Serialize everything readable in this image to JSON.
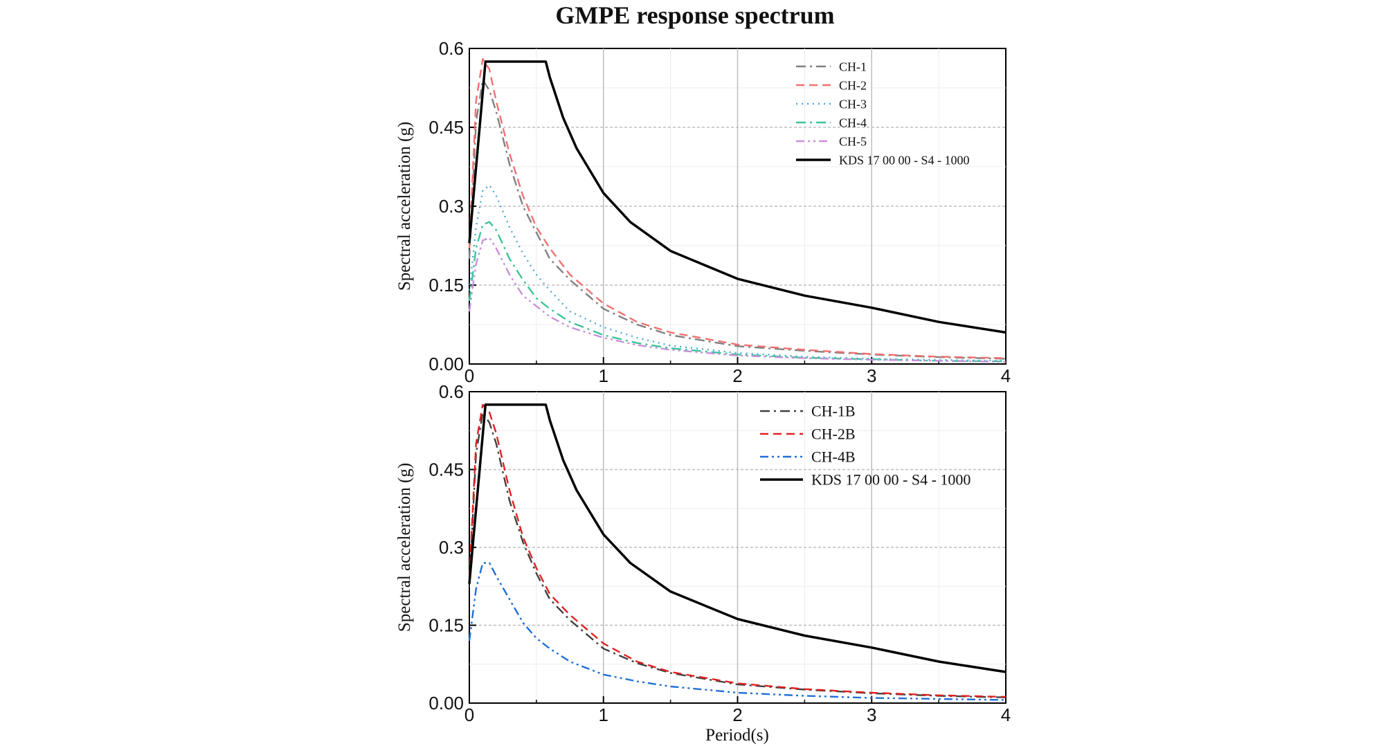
{
  "title": "GMPE response spectrum",
  "colors": {
    "ch1": "#808080",
    "ch2": "#f07070",
    "ch3": "#4aa8d8",
    "ch4": "#3cc39a",
    "ch5": "#c890dc",
    "ch1b": "#404040",
    "ch2b": "#e02020",
    "ch4b": "#1f6fd6",
    "kds": "#000000"
  },
  "chart_data": [
    {
      "type": "line",
      "xlabel": "",
      "ylabel": "Spectral acceleration (g)",
      "xlim": [
        0,
        4
      ],
      "ylim": [
        0,
        0.6
      ],
      "xticks": [
        "0",
        "1",
        "2",
        "3",
        "4"
      ],
      "yticks": [
        "0.00",
        "0.15",
        "0.3",
        "0.45",
        "0.6"
      ],
      "grid": true,
      "legend_position": "top-right",
      "series": [
        {
          "name": "CH-1",
          "color": "#808080",
          "dash": "dashdot",
          "x": [
            0,
            0.05,
            0.1,
            0.15,
            0.2,
            0.3,
            0.4,
            0.5,
            0.6,
            0.75,
            1.0,
            1.25,
            1.5,
            2.0,
            2.5,
            3.0,
            3.5,
            4.0
          ],
          "y": [
            0.2,
            0.46,
            0.54,
            0.52,
            0.48,
            0.38,
            0.3,
            0.25,
            0.2,
            0.16,
            0.105,
            0.075,
            0.055,
            0.034,
            0.025,
            0.018,
            0.013,
            0.01
          ]
        },
        {
          "name": "CH-2",
          "color": "#f07070",
          "dash": "dashed",
          "x": [
            0,
            0.05,
            0.1,
            0.15,
            0.2,
            0.3,
            0.4,
            0.5,
            0.6,
            0.75,
            1.0,
            1.25,
            1.5,
            2.0,
            2.5,
            3.0,
            3.5,
            4.0
          ],
          "y": [
            0.22,
            0.5,
            0.58,
            0.56,
            0.5,
            0.4,
            0.32,
            0.26,
            0.22,
            0.17,
            0.115,
            0.08,
            0.06,
            0.037,
            0.027,
            0.019,
            0.014,
            0.011
          ]
        },
        {
          "name": "CH-3",
          "color": "#4aa8d8",
          "dash": "dotted",
          "x": [
            0,
            0.05,
            0.1,
            0.15,
            0.2,
            0.3,
            0.4,
            0.5,
            0.6,
            0.75,
            1.0,
            1.25,
            1.5,
            2.0,
            2.5,
            3.0,
            3.5,
            4.0
          ],
          "y": [
            0.14,
            0.26,
            0.33,
            0.34,
            0.32,
            0.26,
            0.21,
            0.17,
            0.14,
            0.1,
            0.07,
            0.05,
            0.035,
            0.021,
            0.014,
            0.01,
            0.008,
            0.006
          ]
        },
        {
          "name": "CH-4",
          "color": "#3cc39a",
          "dash": "dashdot",
          "x": [
            0,
            0.05,
            0.1,
            0.15,
            0.2,
            0.3,
            0.4,
            0.5,
            0.6,
            0.75,
            1.0,
            1.25,
            1.5,
            2.0,
            2.5,
            3.0,
            3.5,
            4.0
          ],
          "y": [
            0.12,
            0.22,
            0.265,
            0.27,
            0.255,
            0.2,
            0.16,
            0.125,
            0.105,
            0.08,
            0.055,
            0.04,
            0.03,
            0.018,
            0.012,
            0.009,
            0.006,
            0.005
          ]
        },
        {
          "name": "CH-5",
          "color": "#c890dc",
          "dash": "dashdotdot",
          "x": [
            0,
            0.05,
            0.1,
            0.15,
            0.2,
            0.3,
            0.4,
            0.5,
            0.6,
            0.75,
            1.0,
            1.25,
            1.5,
            2.0,
            2.5,
            3.0,
            3.5,
            4.0
          ],
          "y": [
            0.1,
            0.19,
            0.235,
            0.24,
            0.22,
            0.17,
            0.13,
            0.11,
            0.09,
            0.07,
            0.05,
            0.036,
            0.027,
            0.016,
            0.011,
            0.008,
            0.006,
            0.004
          ]
        },
        {
          "name": "KDS 17 00 00 - S4 - 1000",
          "color": "#000000",
          "dash": "solid",
          "x": [
            0,
            0.12,
            0.2,
            0.3,
            0.4,
            0.5,
            0.57,
            0.6,
            0.7,
            0.8,
            1.0,
            1.2,
            1.5,
            2.0,
            2.5,
            3.0,
            3.5,
            4.0
          ],
          "y": [
            0.23,
            0.575,
            0.575,
            0.575,
            0.575,
            0.575,
            0.575,
            0.545,
            0.468,
            0.41,
            0.325,
            0.27,
            0.215,
            0.162,
            0.13,
            0.107,
            0.08,
            0.06
          ]
        }
      ]
    },
    {
      "type": "line",
      "xlabel": "Period(s)",
      "ylabel": "Spectral acceleration (g)",
      "xlim": [
        0,
        4
      ],
      "ylim": [
        0,
        0.6
      ],
      "xticks": [
        "0",
        "1",
        "2",
        "3",
        "4"
      ],
      "yticks": [
        "0.00",
        "0.15",
        "0.3",
        "0.45",
        "0.6"
      ],
      "grid": true,
      "legend_position": "top-right",
      "series": [
        {
          "name": "CH-1B",
          "color": "#404040",
          "dash": "dashdot",
          "x": [
            0,
            0.05,
            0.1,
            0.15,
            0.2,
            0.3,
            0.4,
            0.5,
            0.6,
            0.75,
            1.0,
            1.25,
            1.5,
            2.0,
            2.5,
            3.0,
            3.5,
            4.0
          ],
          "y": [
            0.23,
            0.48,
            0.56,
            0.54,
            0.5,
            0.39,
            0.31,
            0.25,
            0.2,
            0.16,
            0.105,
            0.077,
            0.058,
            0.036,
            0.026,
            0.019,
            0.014,
            0.011
          ]
        },
        {
          "name": "CH-2B",
          "color": "#e02020",
          "dash": "dashed",
          "x": [
            0,
            0.05,
            0.1,
            0.15,
            0.2,
            0.3,
            0.4,
            0.5,
            0.6,
            0.75,
            1.0,
            1.25,
            1.5,
            2.0,
            2.5,
            3.0,
            3.5,
            4.0
          ],
          "y": [
            0.24,
            0.5,
            0.575,
            0.56,
            0.52,
            0.41,
            0.32,
            0.26,
            0.21,
            0.17,
            0.115,
            0.08,
            0.06,
            0.038,
            0.027,
            0.02,
            0.015,
            0.012
          ]
        },
        {
          "name": "CH-4B",
          "color": "#1f6fd6",
          "dash": "dashdotdot",
          "x": [
            0,
            0.05,
            0.1,
            0.15,
            0.2,
            0.3,
            0.4,
            0.5,
            0.6,
            0.75,
            1.0,
            1.25,
            1.5,
            2.0,
            2.5,
            3.0,
            3.5,
            4.0
          ],
          "y": [
            0.12,
            0.22,
            0.27,
            0.27,
            0.245,
            0.2,
            0.155,
            0.125,
            0.105,
            0.08,
            0.055,
            0.042,
            0.032,
            0.02,
            0.014,
            0.01,
            0.008,
            0.006
          ]
        },
        {
          "name": "KDS 17 00 00 - S4 - 1000",
          "color": "#000000",
          "dash": "solid",
          "x": [
            0,
            0.12,
            0.2,
            0.3,
            0.4,
            0.5,
            0.57,
            0.6,
            0.7,
            0.8,
            1.0,
            1.2,
            1.5,
            2.0,
            2.5,
            3.0,
            3.5,
            4.0
          ],
          "y": [
            0.23,
            0.575,
            0.575,
            0.575,
            0.575,
            0.575,
            0.575,
            0.545,
            0.468,
            0.41,
            0.325,
            0.27,
            0.215,
            0.162,
            0.13,
            0.107,
            0.08,
            0.06
          ]
        }
      ]
    }
  ]
}
